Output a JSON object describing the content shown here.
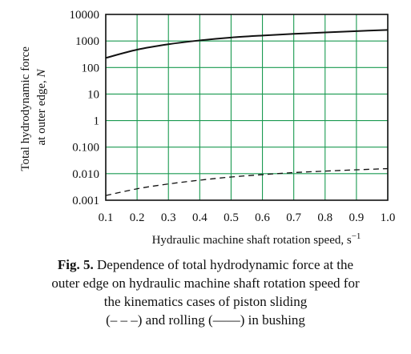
{
  "chart_data": {
    "type": "line",
    "xlabel": "Hydraulic machine shaft rotation speed, s",
    "xlabel_sup": "−1",
    "ylabel_line1": "Total hydrodynamic force",
    "ylabel_line2_prefix": "at outer edge, ",
    "ylabel_unit": "N",
    "x_ticks": [
      "0.1",
      "0.2",
      "0.3",
      "0.4",
      "0.5",
      "0.6",
      "0.7",
      "0.8",
      "0.9",
      "1.0"
    ],
    "y_ticks": [
      "10000",
      "1000",
      "100",
      "10",
      "1",
      "0.100",
      "0.010",
      "0.001"
    ],
    "y_tick_values": [
      10000,
      1000,
      100,
      10,
      1,
      0.1,
      0.01,
      0.001
    ],
    "xlim": [
      0.1,
      1.0
    ],
    "ylim": [
      0.001,
      10000
    ],
    "y_scale": "log",
    "grid": true,
    "grid_color": "#1a9a50",
    "series": [
      {
        "style": "solid",
        "x": [
          0.1,
          0.2,
          0.3,
          0.4,
          0.5,
          0.6,
          0.7,
          0.8,
          0.9,
          1.0
        ],
        "y": [
          230,
          470,
          750,
          1050,
          1350,
          1600,
          1850,
          2100,
          2350,
          2600
        ]
      },
      {
        "style": "dashed",
        "x": [
          0.1,
          0.2,
          0.3,
          0.4,
          0.5,
          0.6,
          0.7,
          0.8,
          0.9,
          1.0
        ],
        "y": [
          0.0015,
          0.0027,
          0.0041,
          0.0057,
          0.0075,
          0.0092,
          0.011,
          0.0125,
          0.014,
          0.0155
        ]
      }
    ]
  },
  "caption": {
    "fig_label": "Fig. 5.",
    "line1": " Dependence of total hydrodynamic force at the",
    "line2": "outer edge on hydraulic machine shaft rotation speed for",
    "line3": "the kinematics cases of piston sliding",
    "line4": "(– – –) and rolling (——) in bushing"
  }
}
